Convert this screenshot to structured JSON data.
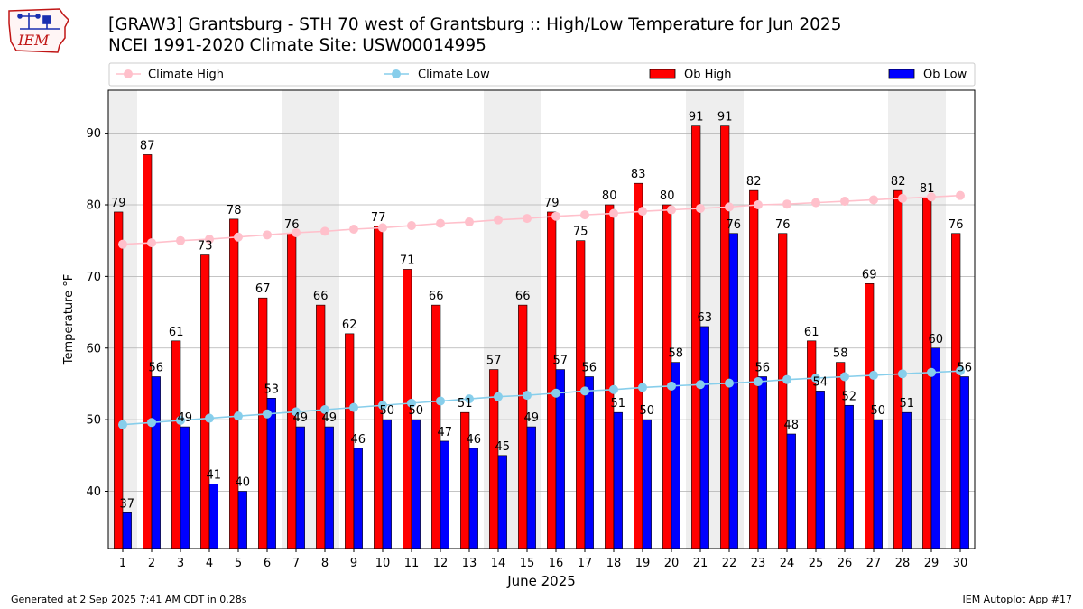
{
  "header": {
    "logo_text": "IEM",
    "title_line1": "[GRAW3] Grantsburg - STH 70 west of Grantsburg :: High/Low Temperature for Jun 2025",
    "title_line2": "NCEI 1991-2020 Climate Site: USW00014995"
  },
  "footer": {
    "left": "Generated at 2 Sep 2025 7:41 AM CDT in 0.28s",
    "right": "IEM Autoplot App #17"
  },
  "colors": {
    "ob_high": "#ff0000",
    "ob_low": "#0000ff",
    "climate_high": "#ffc0cb",
    "climate_low": "#87ceeb",
    "weekend_band": "#eeeeee"
  },
  "chart_data": {
    "type": "bar",
    "xlabel": "June 2025",
    "ylabel": "Temperature °F",
    "ylim": [
      32,
      96
    ],
    "yticks": [
      40,
      50,
      60,
      70,
      80,
      90
    ],
    "grid": "horizontal",
    "legend_placement": "top",
    "categories": [
      1,
      2,
      3,
      4,
      5,
      6,
      7,
      8,
      9,
      10,
      11,
      12,
      13,
      14,
      15,
      16,
      17,
      18,
      19,
      20,
      21,
      22,
      23,
      24,
      25,
      26,
      27,
      28,
      29,
      30
    ],
    "shaded_days": [
      1,
      7,
      8,
      14,
      15,
      21,
      22,
      28,
      29
    ],
    "series": [
      {
        "name": "Climate High",
        "kind": "line",
        "color_key": "climate_high",
        "values": [
          74.5,
          74.7,
          75.0,
          75.2,
          75.5,
          75.8,
          76.1,
          76.3,
          76.6,
          76.8,
          77.1,
          77.4,
          77.6,
          77.9,
          78.1,
          78.4,
          78.6,
          78.8,
          79.1,
          79.3,
          79.5,
          79.7,
          80.0,
          80.1,
          80.3,
          80.5,
          80.7,
          80.9,
          81.1,
          81.3
        ]
      },
      {
        "name": "Climate Low",
        "kind": "line",
        "color_key": "climate_low",
        "values": [
          49.3,
          49.6,
          49.9,
          50.2,
          50.5,
          50.8,
          51.1,
          51.4,
          51.7,
          52.0,
          52.3,
          52.6,
          52.9,
          53.2,
          53.4,
          53.7,
          54.0,
          54.2,
          54.5,
          54.7,
          54.9,
          55.1,
          55.3,
          55.6,
          55.8,
          56.0,
          56.2,
          56.4,
          56.6,
          56.8
        ]
      },
      {
        "name": "Ob High",
        "kind": "bar",
        "color_key": "ob_high",
        "values": [
          79,
          87,
          61,
          73,
          78,
          67,
          76,
          66,
          62,
          77,
          71,
          66,
          51,
          57,
          66,
          79,
          75,
          80,
          83,
          80,
          91,
          91,
          82,
          76,
          61,
          58,
          69,
          82,
          81,
          76
        ]
      },
      {
        "name": "Ob Low",
        "kind": "bar",
        "color_key": "ob_low",
        "values": [
          37,
          56,
          49,
          41,
          40,
          53,
          49,
          49,
          46,
          50,
          50,
          47,
          46,
          45,
          49,
          57,
          56,
          51,
          50,
          58,
          63,
          76,
          56,
          48,
          54,
          52,
          50,
          51,
          60,
          56
        ]
      }
    ]
  }
}
